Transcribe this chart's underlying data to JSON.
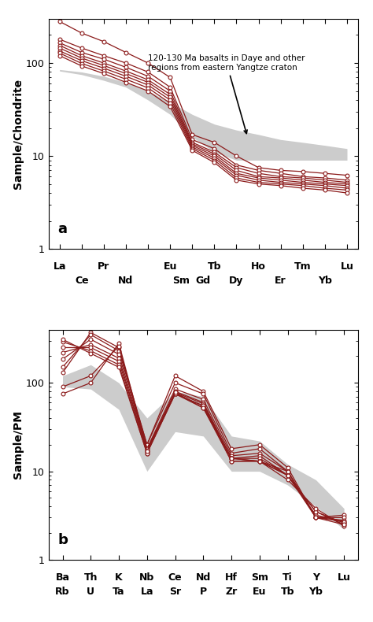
{
  "panel_a": {
    "ylabel": "Sample/Chondrite",
    "label": "a",
    "ylim": [
      1,
      300
    ],
    "yticks": [
      1,
      10,
      100
    ],
    "annotation_text": "120-130 Ma basalts in Daye and other\nregions from eastern Yangtze craton",
    "n_elements": 14,
    "gray_band_upper": [
      85,
      80,
      72,
      62,
      50,
      38,
      28,
      22,
      19,
      17,
      15,
      14,
      13,
      12
    ],
    "gray_band_lower": [
      82,
      75,
      65,
      55,
      40,
      28,
      16,
      11,
      9,
      9,
      9,
      9,
      9,
      9
    ],
    "lines": [
      [
        280,
        210,
        170,
        130,
        100,
        70,
        17,
        14,
        10,
        7.5,
        7.0,
        6.8,
        6.5,
        6.2
      ],
      [
        180,
        145,
        120,
        100,
        80,
        55,
        15,
        12,
        8,
        7.0,
        6.5,
        6.0,
        5.8,
        5.5
      ],
      [
        165,
        130,
        110,
        90,
        72,
        50,
        14,
        11,
        7.5,
        6.5,
        6.0,
        5.8,
        5.5,
        5.2
      ],
      [
        155,
        120,
        100,
        82,
        66,
        46,
        13.5,
        10.5,
        7.0,
        6.0,
        5.8,
        5.5,
        5.2,
        5.0
      ],
      [
        145,
        113,
        94,
        77,
        62,
        43,
        13.0,
        10.0,
        6.5,
        5.8,
        5.5,
        5.2,
        5.0,
        4.8
      ],
      [
        135,
        106,
        88,
        72,
        58,
        40,
        12.5,
        9.5,
        6.2,
        5.5,
        5.2,
        5.0,
        4.8,
        4.5
      ],
      [
        128,
        99,
        82,
        67,
        54,
        37,
        12.0,
        9.0,
        5.8,
        5.2,
        5.0,
        4.8,
        4.5,
        4.3
      ],
      [
        120,
        93,
        77,
        62,
        50,
        34,
        11.5,
        8.5,
        5.5,
        5.0,
        4.8,
        4.5,
        4.3,
        4.0
      ]
    ],
    "line_color": "#8B1A1A",
    "gray_color": "#BBBBBB",
    "row1": [
      [
        "La",
        0
      ],
      [
        "Pr",
        2
      ],
      [
        "Eu",
        5
      ],
      [
        "Tb",
        7
      ],
      [
        "Ho",
        9
      ],
      [
        "Tm",
        11
      ],
      [
        "Lu",
        13
      ]
    ],
    "row2": [
      [
        "Ce",
        1
      ],
      [
        "Nd",
        3
      ],
      [
        "Sm",
        5.5
      ],
      [
        "Gd",
        6.5
      ],
      [
        "Dy",
        8
      ],
      [
        "Er",
        10
      ],
      [
        "Yb",
        12
      ]
    ]
  },
  "panel_b": {
    "ylabel": "Sample/PM",
    "label": "b",
    "ylim": [
      1,
      400
    ],
    "yticks": [
      1,
      10,
      100
    ],
    "n_elements": 11,
    "gray_band_upper": [
      120,
      160,
      100,
      40,
      80,
      70,
      25,
      22,
      12,
      8,
      3.8
    ],
    "gray_band_lower": [
      90,
      85,
      50,
      10,
      28,
      25,
      10,
      10,
      7,
      4,
      2.2
    ],
    "lines": [
      [
        130,
        370,
        250,
        20,
        120,
        80,
        18,
        20,
        11,
        3.0,
        3.2
      ],
      [
        150,
        350,
        230,
        20,
        100,
        75,
        16,
        18,
        10,
        3.0,
        3.0
      ],
      [
        185,
        310,
        210,
        18,
        85,
        65,
        15,
        16,
        10,
        3.0,
        2.8
      ],
      [
        220,
        270,
        190,
        17,
        80,
        60,
        14,
        15,
        9,
        3.2,
        2.7
      ],
      [
        250,
        250,
        175,
        17,
        78,
        58,
        14,
        14,
        9,
        3.5,
        2.6
      ],
      [
        290,
        230,
        160,
        16,
        75,
        55,
        13,
        13,
        9,
        3.5,
        2.5
      ],
      [
        310,
        215,
        150,
        16,
        75,
        52,
        13,
        13,
        8,
        3.8,
        2.4
      ],
      [
        75,
        100,
        280,
        18,
        75,
        55,
        14,
        13,
        10,
        3.0,
        2.7
      ],
      [
        90,
        120,
        260,
        17,
        78,
        52,
        14,
        13,
        9,
        3.0,
        2.5
      ]
    ],
    "line_color": "#8B1A1A",
    "gray_color": "#BBBBBB",
    "row1": [
      [
        "Ba",
        0
      ],
      [
        "Th",
        1
      ],
      [
        "K",
        2
      ],
      [
        "Nb",
        3
      ],
      [
        "Ce",
        4
      ],
      [
        "Nd",
        5
      ],
      [
        "Hf",
        6
      ],
      [
        "Sm",
        7
      ],
      [
        "Ti",
        8
      ],
      [
        "Y",
        9
      ],
      [
        "Lu",
        10
      ]
    ],
    "row2": [
      [
        "Rb",
        0
      ],
      [
        "U",
        1
      ],
      [
        "Ta",
        2
      ],
      [
        "La",
        3
      ],
      [
        "Sr",
        4
      ],
      [
        "P",
        5
      ],
      [
        "Zr",
        6
      ],
      [
        "Eu",
        7
      ],
      [
        "Tb",
        8
      ],
      [
        "Yb",
        9
      ]
    ]
  }
}
